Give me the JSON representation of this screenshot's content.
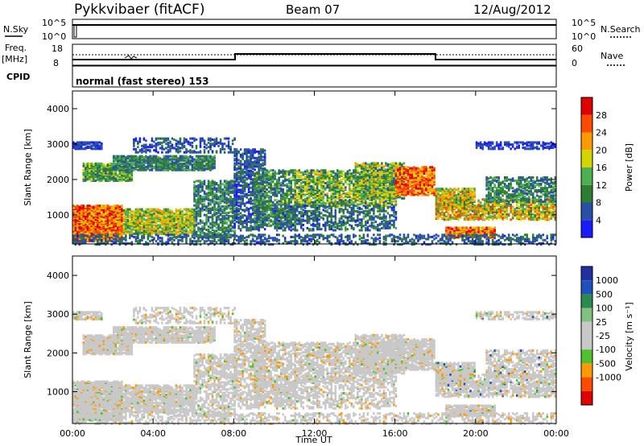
{
  "header": {
    "station": "Pykkvibaer (fitACF)",
    "beam": "Beam 07",
    "date": "12/Aug/2012"
  },
  "noise_panel": {
    "left_label": "N.Sky",
    "left_ticks": [
      "10^5",
      "10^0"
    ],
    "right_ticks": [
      "10^5",
      "10^0"
    ],
    "right_label": "N.Search"
  },
  "freq_panel": {
    "left_label_1": "Freq.",
    "left_label_2": "[MHz]",
    "left_ticks": [
      "18",
      "8"
    ],
    "right_ticks": [
      "60",
      "0"
    ],
    "right_label": "Nave"
  },
  "cpid": {
    "label": "CPID",
    "value": "normal (fast stereo) 153"
  },
  "x_axis": {
    "ticks": [
      "00:00",
      "04:00",
      "08:00",
      "12:00",
      "16:00",
      "20:00",
      "00:00"
    ],
    "label": "Time UT"
  },
  "colors": {
    "power": [
      "#1a1aff",
      "#2a4fa8",
      "#2e7d32",
      "#4caf50",
      "#d4d400",
      "#ff9a00",
      "#ff4a00",
      "#e00000"
    ],
    "velocity": [
      "#e00000",
      "#ff4a00",
      "#ff9a00",
      "#50c030",
      "#c8c8c8",
      "#c8c8c8",
      "#80c080",
      "#2a8a50",
      "#2050c0",
      "#2030a0"
    ]
  },
  "chart_data": [
    {
      "type": "heatmap",
      "name": "power",
      "ylabel": "Slant Range [km]",
      "yticks": [
        "1000",
        "2000",
        "3000",
        "4000"
      ],
      "ylim": [
        180,
        4500
      ],
      "xlim_hours": [
        0,
        24
      ],
      "colorbar_label": "Power [dB]",
      "colorbar_ticks": [
        "4",
        "8",
        "12",
        "16",
        "20",
        "24",
        "28"
      ],
      "clim": [
        0,
        30
      ]
    },
    {
      "type": "heatmap",
      "name": "velocity",
      "ylabel": "Slant Range [km]",
      "yticks": [
        "1000",
        "2000",
        "3000",
        "4000"
      ],
      "ylim": [
        180,
        4500
      ],
      "xlim_hours": [
        0,
        24
      ],
      "colorbar_label": "Velocity [m s⁻¹]",
      "colorbar_ticks": [
        "1000",
        "500",
        "100",
        "25",
        "-25",
        "-100",
        "-500",
        "-1000"
      ]
    }
  ]
}
